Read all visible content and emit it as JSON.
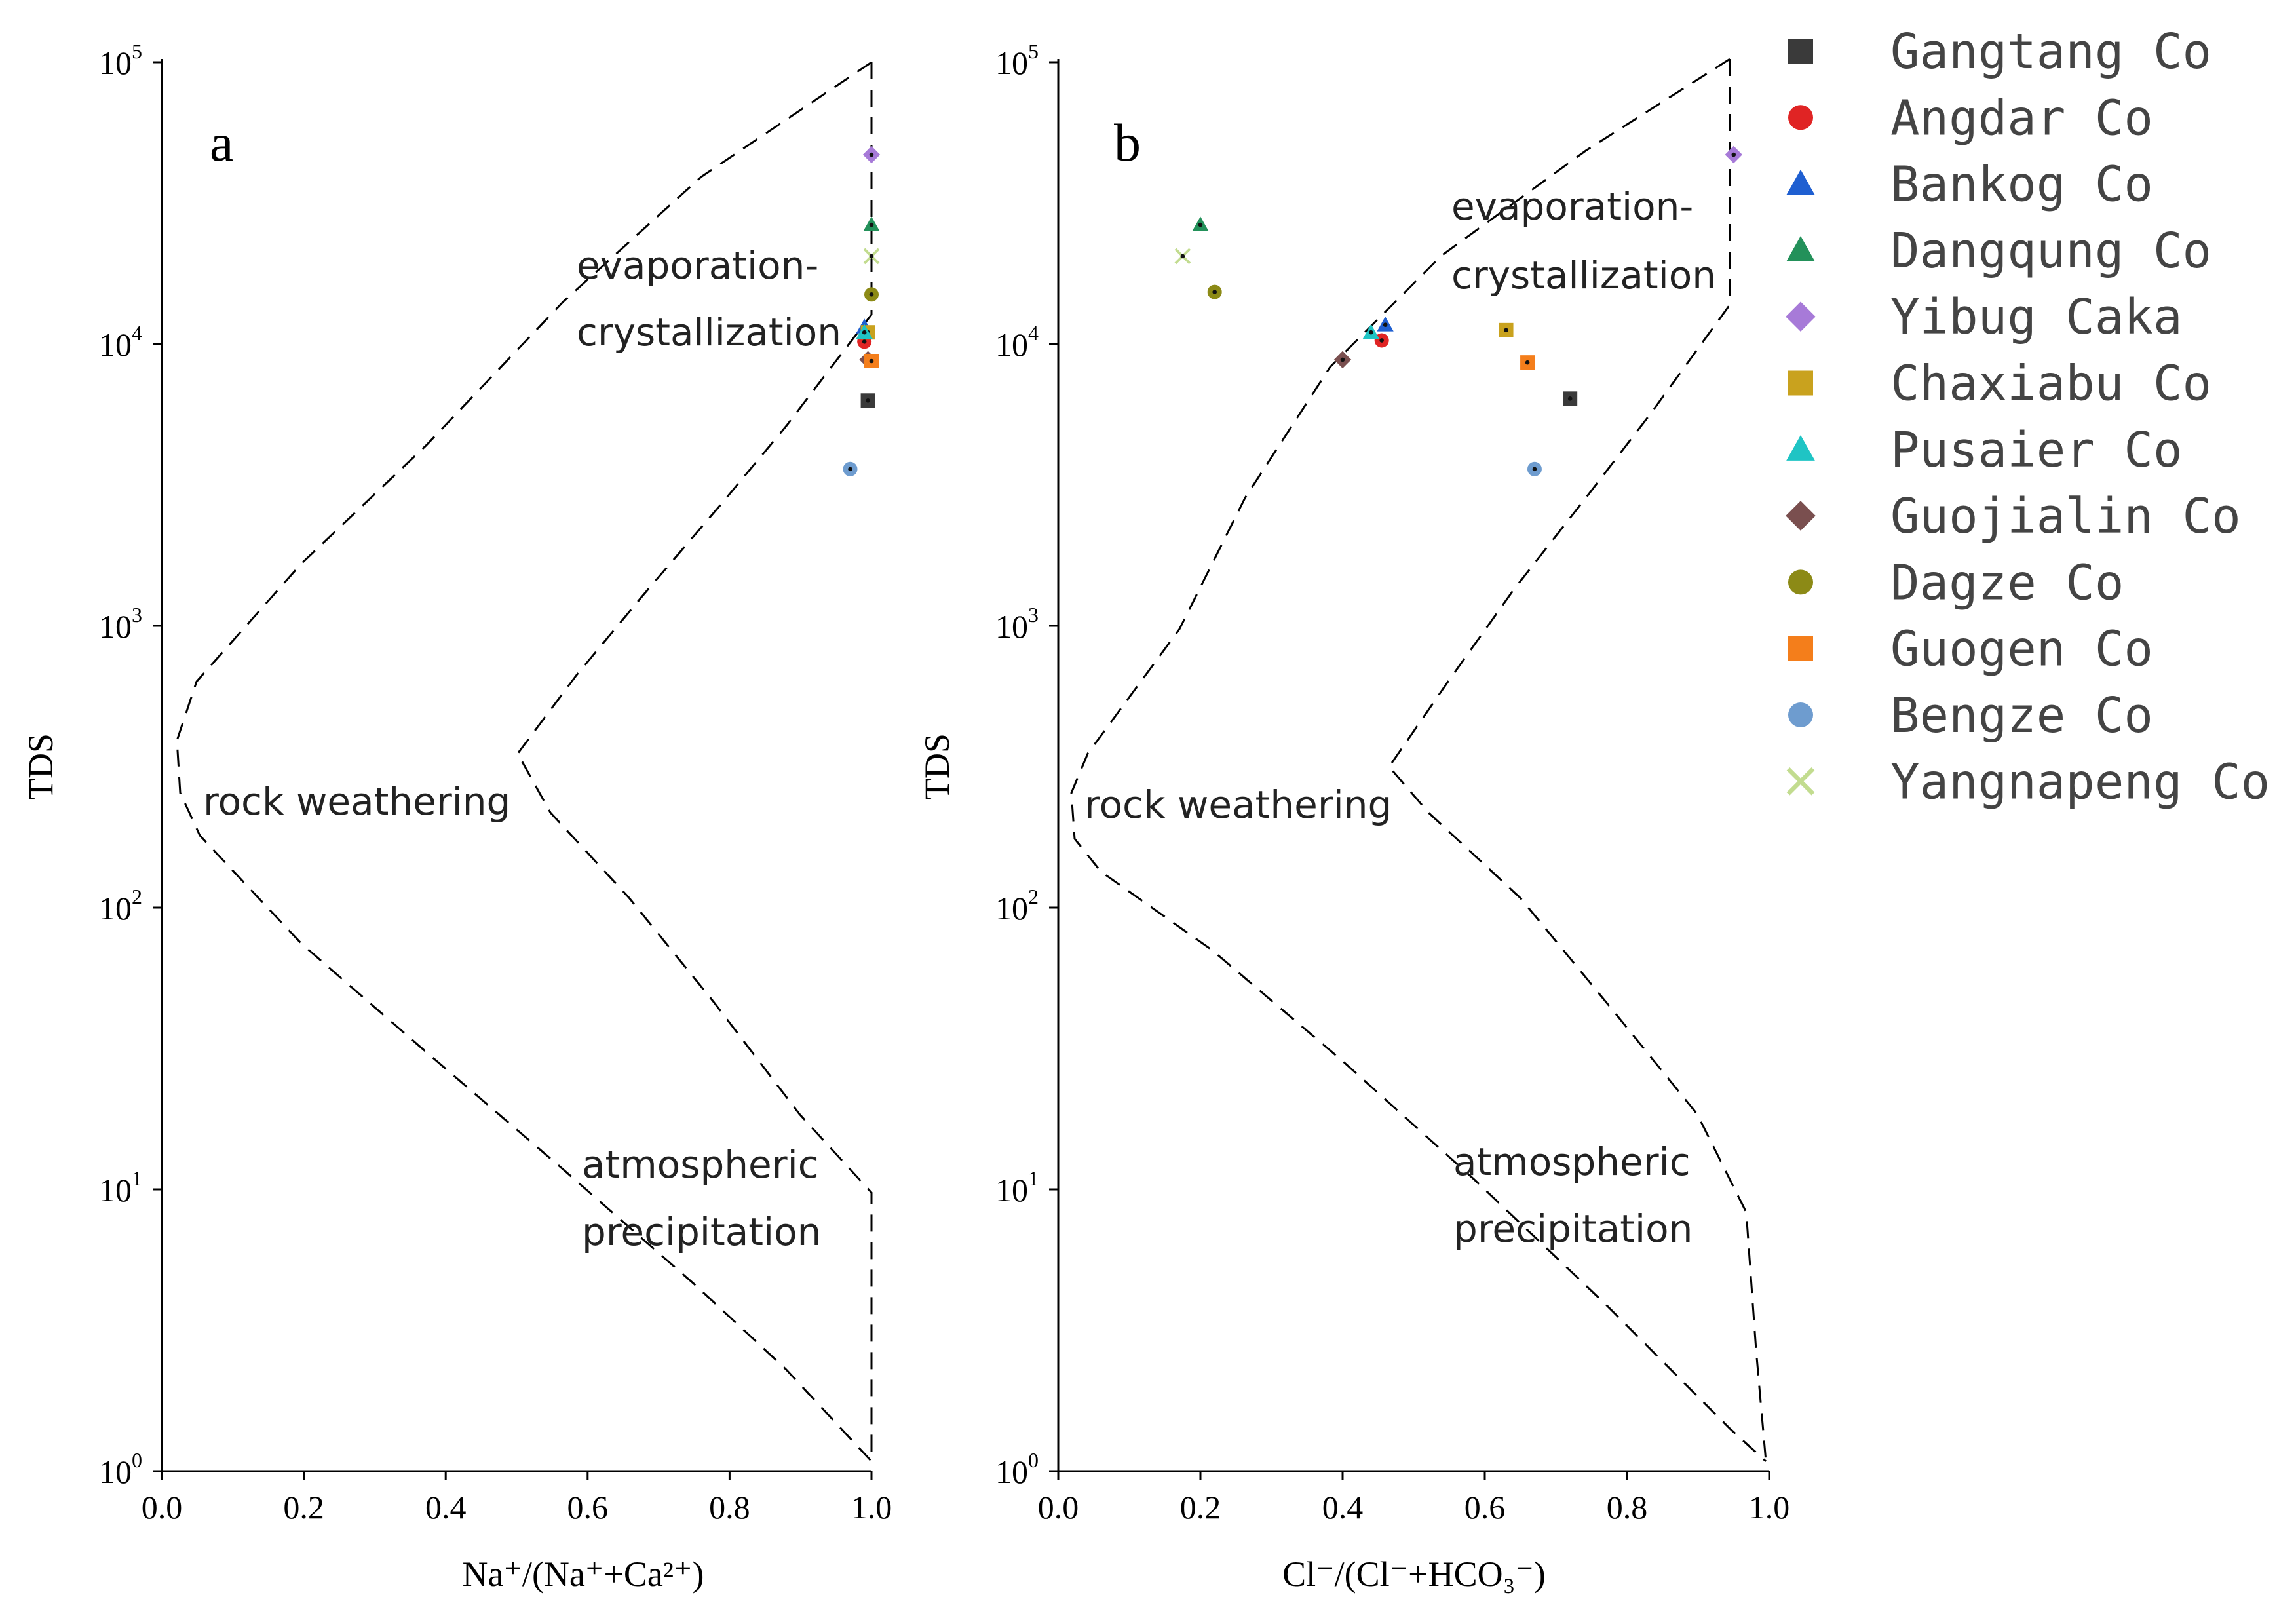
{
  "chart_data": [
    {
      "type": "scatter",
      "panel_label": "a",
      "xlabel": "Na⁺/(Na⁺+Ca²⁺)",
      "ylabel": "TDS",
      "xlim": [
        0.0,
        1.0
      ],
      "ylim": [
        1,
        100000
      ],
      "yscale": "log",
      "x_ticks": [
        "0.0",
        "0.2",
        "0.4",
        "0.6",
        "0.8",
        "1.0"
      ],
      "y_ticks": [
        {
          "base": "10",
          "exp": "0"
        },
        {
          "base": "10",
          "exp": "1"
        },
        {
          "base": "10",
          "exp": "2"
        },
        {
          "base": "10",
          "exp": "3"
        },
        {
          "base": "10",
          "exp": "4"
        },
        {
          "base": "10",
          "exp": "5"
        }
      ],
      "regions": {
        "evaporation": [
          "evaporation-",
          "crystallization"
        ],
        "rock": [
          "rock weathering"
        ],
        "atmospheric": [
          "atmospheric",
          "precipitation"
        ]
      },
      "series": [
        {
          "name": "Gangtang Co",
          "x": 0.995,
          "y": 6300
        },
        {
          "name": "Angdar Co",
          "x": 0.99,
          "y": 10200
        },
        {
          "name": "Bankog Co",
          "x": 0.99,
          "y": 11500
        },
        {
          "name": "Dangqung Co",
          "x": 1.0,
          "y": 26500
        },
        {
          "name": "Yibug Caka",
          "x": 1.0,
          "y": 47000
        },
        {
          "name": "Chaxiabu Co",
          "x": 0.995,
          "y": 11000
        },
        {
          "name": "Pusaier Co",
          "x": 0.99,
          "y": 11000
        },
        {
          "name": "Guojialin Co",
          "x": 0.995,
          "y": 8800
        },
        {
          "name": "Dagze Co",
          "x": 1.0,
          "y": 15000
        },
        {
          "name": "Guogen Co",
          "x": 1.0,
          "y": 8700
        },
        {
          "name": "Bengze Co",
          "x": 0.97,
          "y": 3600
        },
        {
          "name": "Yangnapeng Co",
          "x": 1.0,
          "y": 20500
        }
      ]
    },
    {
      "type": "scatter",
      "panel_label": "b",
      "xlabel": "Cl⁻/(Cl⁻+HCO₃⁻)",
      "ylabel": "TDS",
      "xlim": [
        0.0,
        1.0
      ],
      "ylim": [
        1,
        100000
      ],
      "yscale": "log",
      "x_ticks": [
        "0.0",
        "0.2",
        "0.4",
        "0.6",
        "0.8",
        "1.0"
      ],
      "y_ticks": [
        {
          "base": "10",
          "exp": "0"
        },
        {
          "base": "10",
          "exp": "1"
        },
        {
          "base": "10",
          "exp": "2"
        },
        {
          "base": "10",
          "exp": "3"
        },
        {
          "base": "10",
          "exp": "4"
        },
        {
          "base": "10",
          "exp": "5"
        }
      ],
      "regions": {
        "evaporation": [
          "evaporation-",
          "crystallization"
        ],
        "rock": [
          "rock weathering"
        ],
        "atmospheric": [
          "atmospheric",
          "precipitation"
        ]
      },
      "series": [
        {
          "name": "Gangtang Co",
          "x": 0.72,
          "y": 6400
        },
        {
          "name": "Angdar Co",
          "x": 0.455,
          "y": 10300
        },
        {
          "name": "Bankog Co",
          "x": 0.46,
          "y": 11700
        },
        {
          "name": "Dangqung Co",
          "x": 0.2,
          "y": 26500
        },
        {
          "name": "Yibug Caka",
          "x": 0.95,
          "y": 47000
        },
        {
          "name": "Chaxiabu Co",
          "x": 0.63,
          "y": 11200
        },
        {
          "name": "Pusaier Co",
          "x": 0.44,
          "y": 11000
        },
        {
          "name": "Guojialin Co",
          "x": 0.4,
          "y": 8800
        },
        {
          "name": "Dagze Co",
          "x": 0.22,
          "y": 15300
        },
        {
          "name": "Guogen Co",
          "x": 0.66,
          "y": 8600
        },
        {
          "name": "Bengze Co",
          "x": 0.67,
          "y": 3600
        },
        {
          "name": "Yangnapeng Co",
          "x": 0.175,
          "y": 20500
        }
      ]
    }
  ],
  "legend": [
    {
      "name": "Gangtang Co",
      "marker": "square",
      "color": "#3a3a3a"
    },
    {
      "name": "Angdar Co",
      "marker": "circle",
      "color": "#e02424"
    },
    {
      "name": "Bankog Co",
      "marker": "triangle",
      "color": "#1f5fd1"
    },
    {
      "name": "Dangqung Co",
      "marker": "triangle",
      "color": "#23915a"
    },
    {
      "name": "Yibug Caka",
      "marker": "diamond",
      "color": "#a77ad8"
    },
    {
      "name": "Chaxiabu Co",
      "marker": "square",
      "color": "#c9a21e"
    },
    {
      "name": "Pusaier Co",
      "marker": "triangle",
      "color": "#1fc4c4"
    },
    {
      "name": "Guojialin Co",
      "marker": "diamond",
      "color": "#7a4f4f"
    },
    {
      "name": "Dagze Co",
      "marker": "circle",
      "color": "#8c8a16"
    },
    {
      "name": "Guogen Co",
      "marker": "square",
      "color": "#f47e1b"
    },
    {
      "name": "Bengze Co",
      "marker": "circle",
      "color": "#6e9ccf"
    },
    {
      "name": "Yangnapeng Co",
      "marker": "x",
      "color": "#c2dc8f"
    }
  ]
}
